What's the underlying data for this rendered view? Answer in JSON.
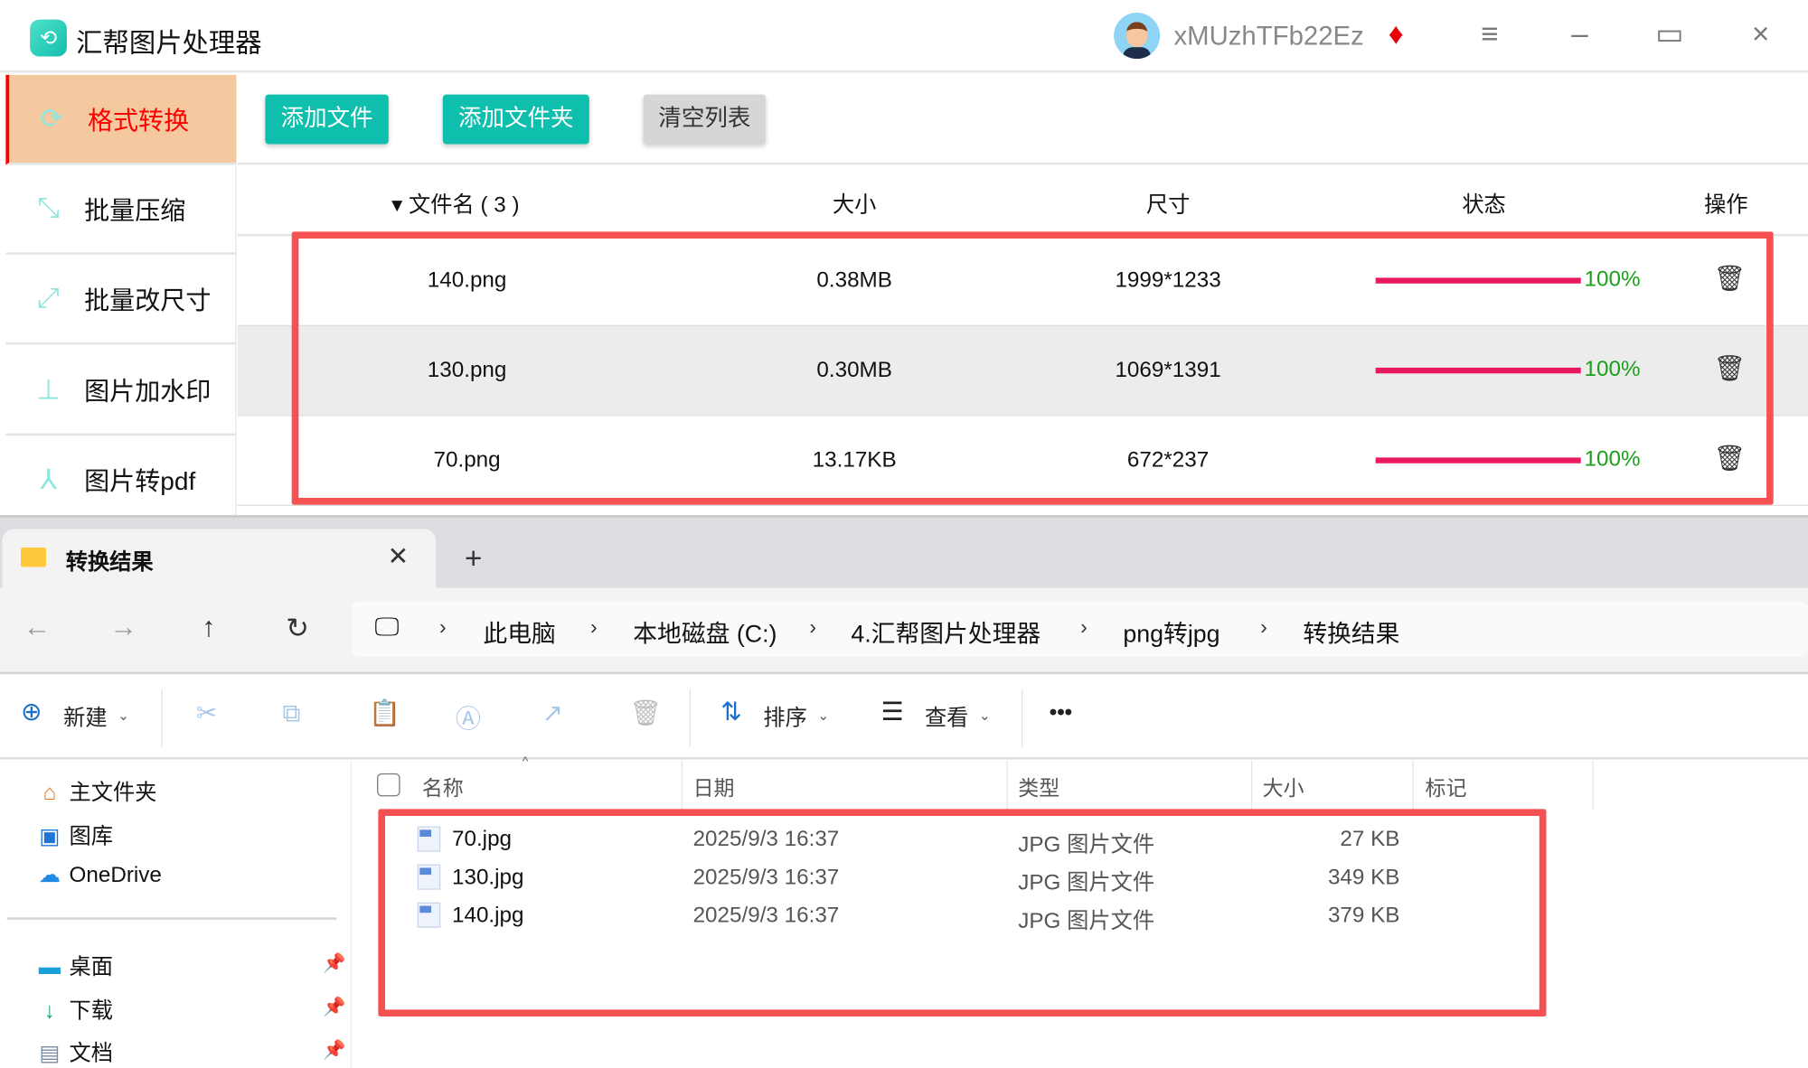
{
  "app": {
    "title": "汇帮图片处理器",
    "username": "xMUzhTFb22Ez",
    "window_controls": {
      "menu": "≡",
      "minimize": "–",
      "maximize": "▭",
      "close": "×"
    }
  },
  "sidebar": {
    "items": [
      {
        "label": "格式转换",
        "icon": "convert-icon",
        "active": true
      },
      {
        "label": "批量压缩",
        "icon": "compress-icon"
      },
      {
        "label": "批量改尺寸",
        "icon": "resize-icon"
      },
      {
        "label": "图片加水印",
        "icon": "watermark-icon"
      },
      {
        "label": "图片转pdf",
        "icon": "pdf-icon"
      }
    ]
  },
  "toolbar": {
    "add_file": "添加文件",
    "add_folder": "添加文件夹",
    "clear_list": "清空列表"
  },
  "table": {
    "headers": {
      "filename": "▾ 文件名 ( 3 )",
      "size": "大小",
      "dimensions": "尺寸",
      "status": "状态",
      "actions": "操作"
    },
    "rows": [
      {
        "name": "140.png",
        "size": "0.38MB",
        "dims": "1999*1233",
        "progress": "100%"
      },
      {
        "name": "130.png",
        "size": "0.30MB",
        "dims": "1069*1391",
        "progress": "100%"
      },
      {
        "name": "70.png",
        "size": "13.17KB",
        "dims": "672*237",
        "progress": "100%"
      }
    ]
  },
  "explorer": {
    "tab_title": "转换结果",
    "breadcrumb": [
      "此电脑",
      "本地磁盘 (C:)",
      "4.汇帮图片处理器",
      "png转jpg",
      "转换结果"
    ],
    "toolbar": {
      "new": "新建",
      "sort": "排序",
      "view": "查看",
      "more": "•••"
    },
    "nav": {
      "items": [
        {
          "label": "主文件夹"
        },
        {
          "label": "图库"
        },
        {
          "label": "OneDrive"
        },
        {
          "label": "桌面"
        },
        {
          "label": "下载"
        },
        {
          "label": "文档"
        }
      ]
    },
    "columns": {
      "name": "名称",
      "date": "日期",
      "type": "类型",
      "size": "大小",
      "tags": "标记"
    },
    "files": [
      {
        "name": "70.jpg",
        "date": "2025/9/3 16:37",
        "type": "JPG 图片文件",
        "size": "27 KB"
      },
      {
        "name": "130.jpg",
        "date": "2025/9/3 16:37",
        "type": "JPG 图片文件",
        "size": "349 KB"
      },
      {
        "name": "140.jpg",
        "date": "2025/9/3 16:37",
        "type": "JPG 图片文件",
        "size": "379 KB"
      }
    ]
  },
  "colors": {
    "accent": "#0fbfae",
    "active_bg": "#f5c9a0",
    "highlight_box": "#f65152",
    "progress": "#e8195e",
    "progress_text": "#1aa01a"
  }
}
